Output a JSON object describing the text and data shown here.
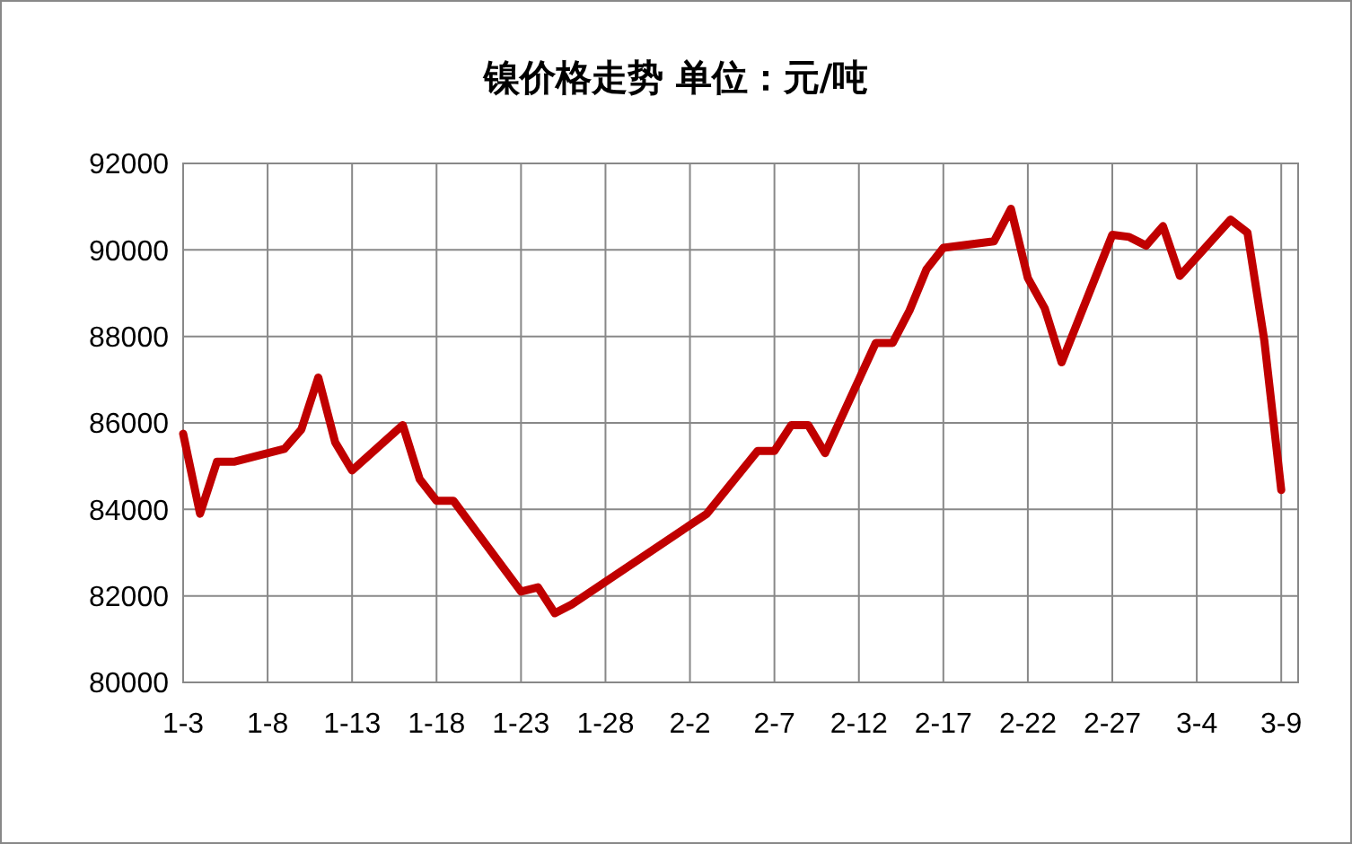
{
  "chart_data": {
    "type": "line",
    "title": "镍价格走势 单位：元/吨",
    "x": [
      "--01-03",
      "--01-04",
      "--01-05",
      "--01-06",
      "--01-09",
      "--01-10",
      "--01-11",
      "--01-12",
      "--01-13",
      "--01-16",
      "--01-17",
      "--01-18",
      "--01-19",
      "--01-23",
      "--01-24",
      "--01-25",
      "--01-26",
      "--02-03",
      "--02-06",
      "--02-07",
      "--02-08",
      "--02-09",
      "--02-10",
      "--02-13",
      "--02-14",
      "--02-15",
      "--02-16",
      "--02-17",
      "--02-20",
      "--02-21",
      "--02-22",
      "--02-23",
      "--02-24",
      "--02-27",
      "--02-28",
      "--03-01",
      "--03-02",
      "--03-03",
      "--03-06",
      "--03-07",
      "--03-08",
      "--03-09"
    ],
    "series": [
      {
        "color": "#c00000",
        "values": [
          85750,
          83900,
          85100,
          85100,
          85400,
          85850,
          87050,
          85550,
          84900,
          85950,
          84700,
          84200,
          84200,
          82100,
          82200,
          81600,
          81800,
          83900,
          85350,
          85350,
          85950,
          85950,
          85300,
          87850,
          87850,
          88600,
          89550,
          90050,
          90200,
          90950,
          89350,
          88650,
          87400,
          90350,
          90300,
          90100,
          90550,
          89400,
          90700,
          90400,
          87900,
          84450
        ]
      }
    ],
    "xlim": [
      "--01-03",
      "--03-10"
    ],
    "xticks": [
      {
        "value": "--01-03",
        "label": "1-3"
      },
      {
        "value": "--01-08",
        "label": "1-8"
      },
      {
        "value": "--01-13",
        "label": "1-13"
      },
      {
        "value": "--01-18",
        "label": "1-18"
      },
      {
        "value": "--01-23",
        "label": "1-23"
      },
      {
        "value": "--01-28",
        "label": "1-28"
      },
      {
        "value": "--02-02",
        "label": "2-2"
      },
      {
        "value": "--02-07",
        "label": "2-7"
      },
      {
        "value": "--02-12",
        "label": "2-12"
      },
      {
        "value": "--02-17",
        "label": "2-17"
      },
      {
        "value": "--02-22",
        "label": "2-22"
      },
      {
        "value": "--02-27",
        "label": "2-27"
      },
      {
        "value": "--03-04",
        "label": "3-4"
      },
      {
        "value": "--03-09",
        "label": "3-9"
      }
    ],
    "ylim": [
      80000,
      92000
    ],
    "yticks": [
      80000,
      82000,
      84000,
      86000,
      88000,
      90000,
      92000
    ],
    "grid": true,
    "marker": "none",
    "line_style": "solid"
  }
}
